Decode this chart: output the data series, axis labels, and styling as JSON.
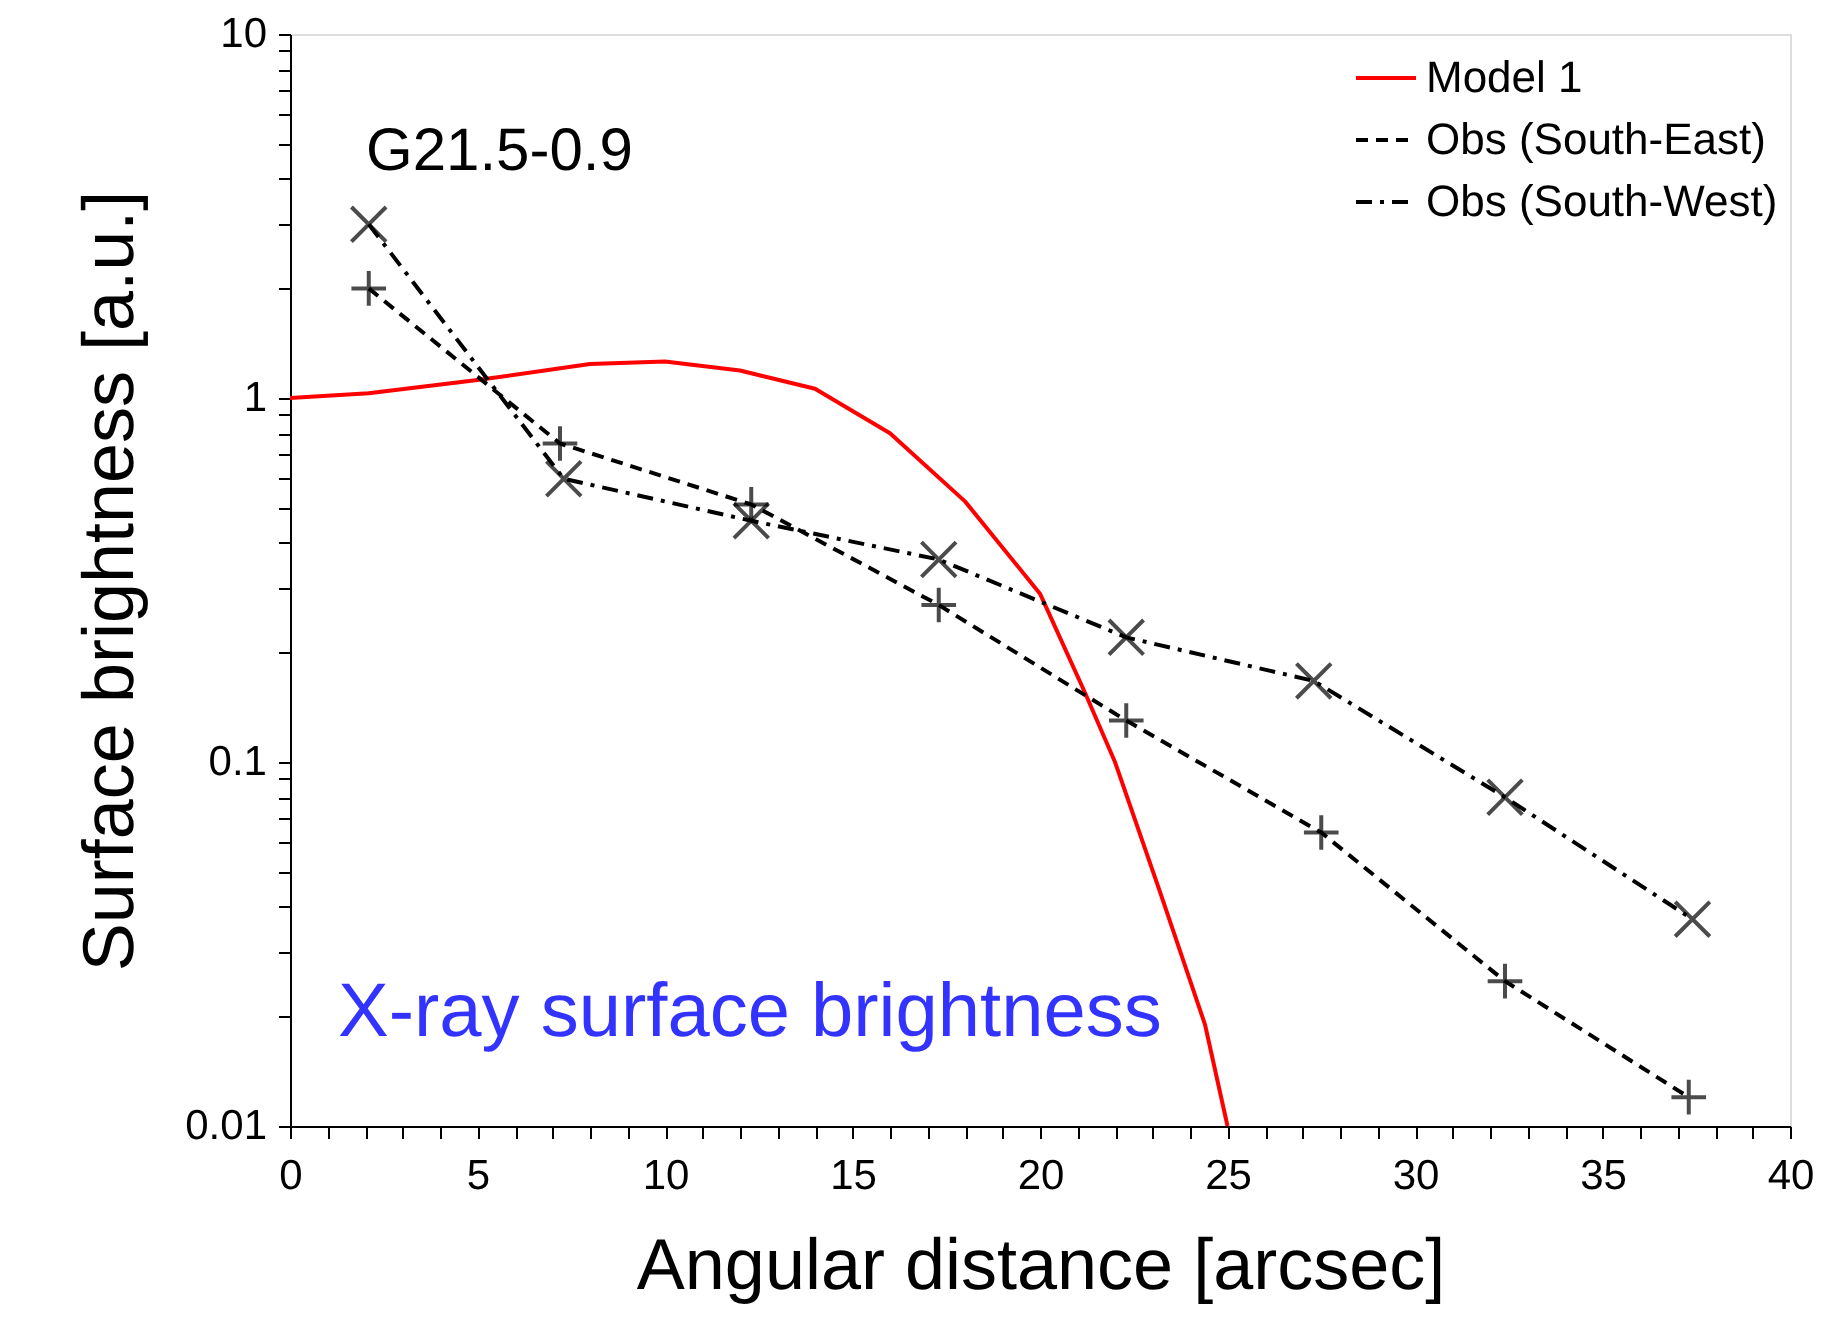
{
  "chart_data": {
    "type": "line",
    "xlabel": "Angular distance [arcsec]",
    "ylabel": "Surface brightness [a.u.]",
    "annotations": [
      "G21.5-0.9",
      "X-ray surface brightness"
    ],
    "log": "y",
    "xlim": [
      0,
      40
    ],
    "ylim": [
      0.01,
      10
    ],
    "xticks": [
      0,
      {
        "value": 1,
        "label": null
      },
      {
        "value": 2,
        "label": null
      },
      {
        "value": 3,
        "label": null
      },
      {
        "value": 4,
        "label": null
      },
      5,
      {
        "value": 6,
        "label": null
      },
      {
        "value": 7,
        "label": null
      },
      {
        "value": 8,
        "label": null
      },
      {
        "value": 9,
        "label": null
      },
      10,
      {
        "value": 11,
        "label": null
      },
      {
        "value": 12,
        "label": null
      },
      {
        "value": 13,
        "label": null
      },
      {
        "value": 14,
        "label": null
      },
      15,
      {
        "value": 16,
        "label": null
      },
      {
        "value": 17,
        "label": null
      },
      {
        "value": 18,
        "label": null
      },
      {
        "value": 19,
        "label": null
      },
      20,
      {
        "value": 21,
        "label": null
      },
      {
        "value": 22,
        "label": null
      },
      {
        "value": 23,
        "label": null
      },
      {
        "value": 24,
        "label": null
      },
      25,
      {
        "value": 26,
        "label": null
      },
      {
        "value": 27,
        "label": null
      },
      {
        "value": 28,
        "label": null
      },
      {
        "value": 29,
        "label": null
      },
      30,
      {
        "value": 31,
        "label": null
      },
      {
        "value": 32,
        "label": null
      },
      {
        "value": 33,
        "label": null
      },
      {
        "value": 34,
        "label": null
      },
      35,
      {
        "value": 36,
        "label": null
      },
      {
        "value": 37,
        "label": null
      },
      {
        "value": 38,
        "label": null
      },
      {
        "value": 39,
        "label": null
      },
      40
    ],
    "yticks": [
      0.01,
      {
        "value": 0.02,
        "label": null
      },
      {
        "value": 0.03,
        "label": null
      },
      {
        "value": 0.04,
        "label": null
      },
      {
        "value": 0.05,
        "label": null
      },
      {
        "value": 0.06,
        "label": null
      },
      {
        "value": 0.07,
        "label": null
      },
      {
        "value": 0.08,
        "label": null
      },
      {
        "value": 0.09,
        "label": null
      },
      0.1,
      {
        "value": 0.2,
        "label": null
      },
      {
        "value": 0.3,
        "label": null
      },
      {
        "value": 0.4,
        "label": null
      },
      {
        "value": 0.5,
        "label": null
      },
      {
        "value": 0.6,
        "label": null
      },
      {
        "value": 0.7,
        "label": null
      },
      {
        "value": 0.8,
        "label": null
      },
      {
        "value": 0.9,
        "label": null
      },
      1,
      {
        "value": 2,
        "label": null
      },
      {
        "value": 3,
        "label": null
      },
      {
        "value": 4,
        "label": null
      },
      {
        "value": 5,
        "label": null
      },
      {
        "value": 6,
        "label": null
      },
      {
        "value": 7,
        "label": null
      },
      {
        "value": 8,
        "label": null
      },
      {
        "value": 9,
        "label": null
      },
      10
    ],
    "grid": false,
    "legend": "top right",
    "series": [
      {
        "name": "Model 1",
        "color": "#ff0000",
        "marker": "none",
        "line_style": "solid",
        "x": [
          0,
          2.1,
          5,
          8,
          10,
          12,
          14,
          16,
          18,
          20,
          21.2,
          22,
          23.2,
          24.4,
          25
        ],
        "values": [
          1.0,
          1.03,
          1.12,
          1.24,
          1.26,
          1.19,
          1.06,
          0.8,
          0.52,
          0.29,
          0.155,
          0.1,
          0.044,
          0.019,
          0.01
        ]
      },
      {
        "name": "Obs (South-East)",
        "color": "#000000",
        "marker": "plus",
        "line_style": "dashed",
        "x": [
          2.1,
          7.2,
          12.3,
          17.3,
          22.3,
          27.5,
          32.4,
          37.3
        ],
        "values": [
          2.0,
          0.75,
          0.51,
          0.27,
          0.13,
          0.064,
          0.025,
          0.012
        ]
      },
      {
        "name": "Obs (South-West)",
        "color": "#000000",
        "marker": "cross",
        "line_style": "dashdot",
        "x": [
          2.1,
          7.3,
          12.3,
          17.3,
          22.3,
          27.3,
          32.4,
          37.4
        ],
        "values": [
          3.0,
          0.6,
          0.46,
          0.36,
          0.22,
          0.167,
          0.08,
          0.037
        ]
      }
    ]
  }
}
